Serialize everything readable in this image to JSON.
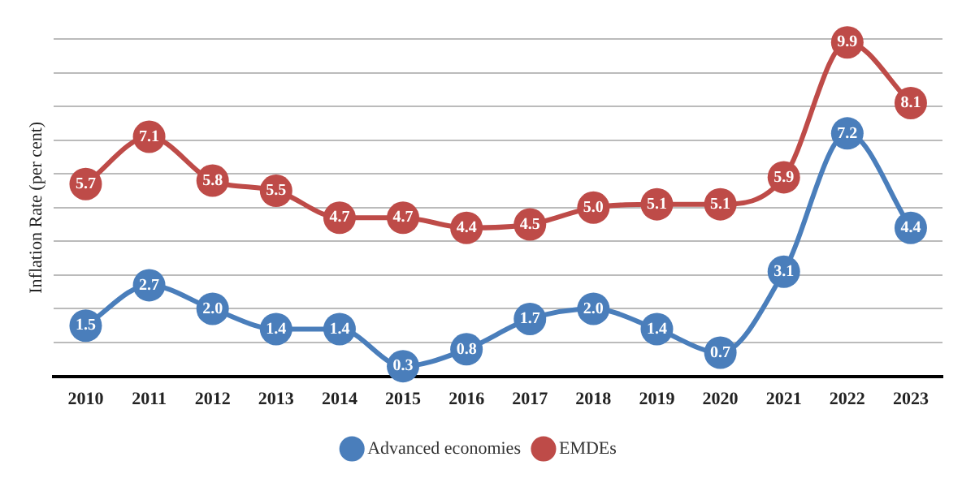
{
  "chart_data": {
    "type": "line",
    "ylabel": "Inflation Rate (per cent)",
    "categories": [
      "2010",
      "2011",
      "2012",
      "2013",
      "2014",
      "2015",
      "2016",
      "2017",
      "2018",
      "2019",
      "2020",
      "2021",
      "2022",
      "2023"
    ],
    "series": [
      {
        "name": "Advanced economies",
        "color": "#4a7ebb",
        "values": [
          1.5,
          2.7,
          2.0,
          1.4,
          1.4,
          0.3,
          0.8,
          1.7,
          2.0,
          1.4,
          0.7,
          3.1,
          7.2,
          4.4
        ],
        "value_labels": [
          "1.5",
          "2.7",
          "2.0",
          "1.4",
          "1.4",
          "0.3",
          "0.8",
          "1.7",
          "2.0",
          "1.4",
          "0.7",
          "3.1",
          "7.2",
          "4.4"
        ]
      },
      {
        "name": "EMDEs",
        "color": "#be4b48",
        "values": [
          5.7,
          7.1,
          5.8,
          5.5,
          4.7,
          4.7,
          4.4,
          4.5,
          5.0,
          5.1,
          5.1,
          5.9,
          9.9,
          8.1
        ],
        "value_labels": [
          "5.7",
          "7.1",
          "5.8",
          "5.5",
          "4.7",
          "4.7",
          "4.4",
          "4.5",
          "5.0",
          "5.1",
          "5.1",
          "5.9",
          "9.9",
          "8.1"
        ]
      }
    ],
    "ylim": [
      0,
      10
    ],
    "yticks": [
      {
        "value": 0,
        "label": null
      },
      {
        "value": 1,
        "label": null
      },
      {
        "value": 2,
        "label": null
      },
      {
        "value": 3,
        "label": null
      },
      {
        "value": 4,
        "label": null
      },
      {
        "value": 5,
        "label": null
      },
      {
        "value": 6,
        "label": null
      },
      {
        "value": 7,
        "label": null
      },
      {
        "value": 8,
        "label": null
      },
      {
        "value": 9,
        "label": null
      },
      {
        "value": 10,
        "label": null
      }
    ],
    "tick_labels": "x",
    "grid": "y",
    "legend": "bottom",
    "marker": "circle",
    "line_style": "solid"
  }
}
